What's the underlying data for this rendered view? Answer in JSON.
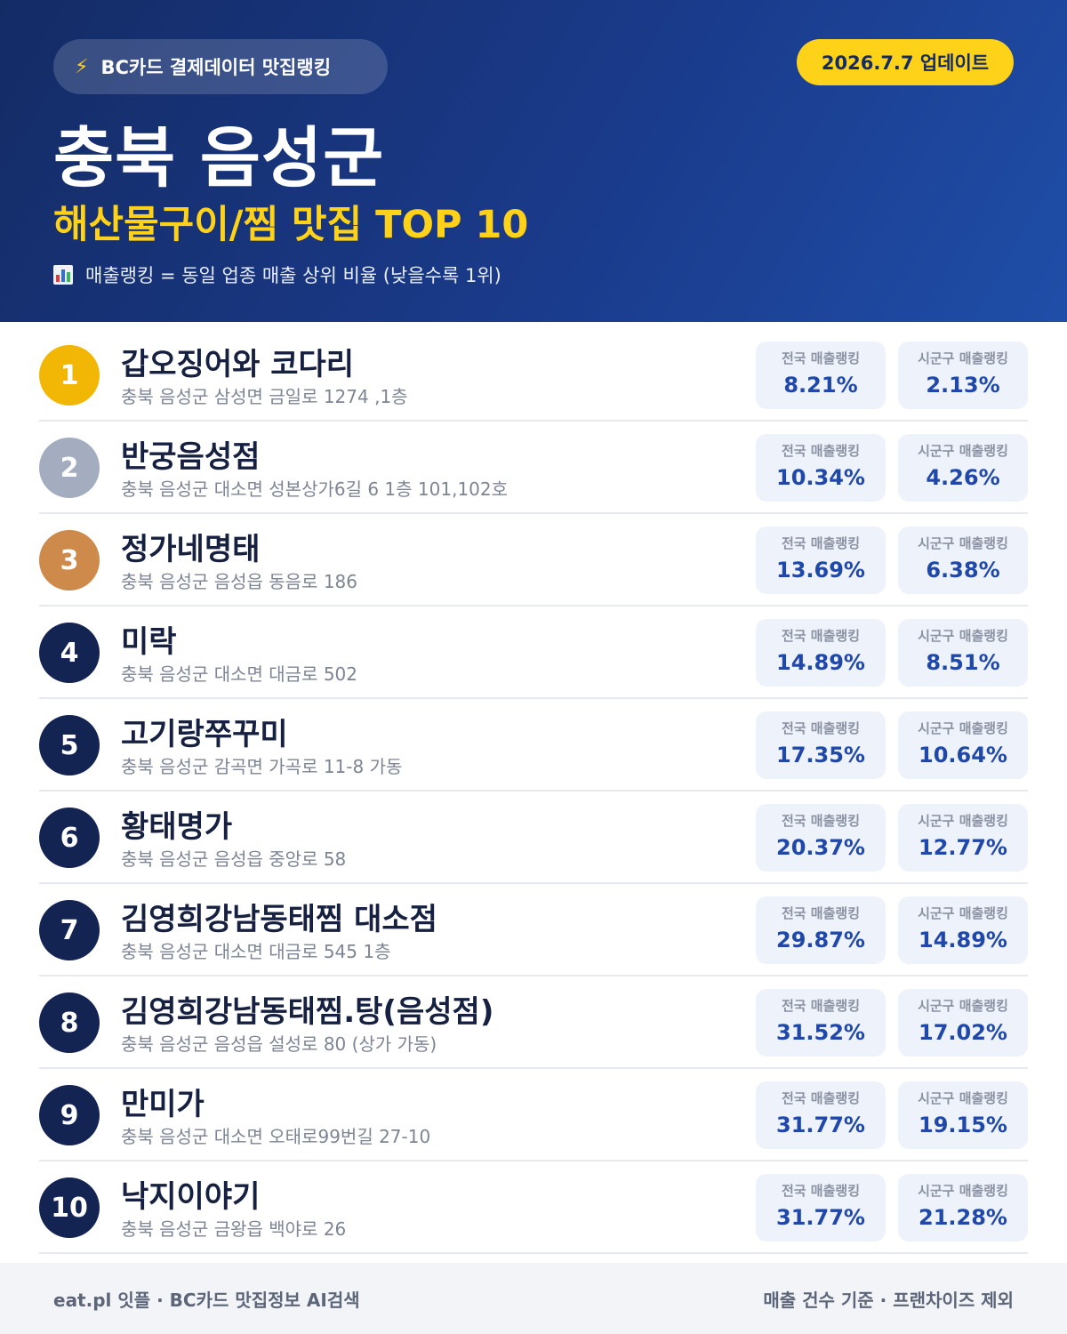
{
  "header": {
    "source_badge": "BC카드 결제데이터 맛집랭킹",
    "source_icon": "lightning-icon",
    "update_badge": "2026.7.7 업데이트",
    "region": "충북 음성군",
    "category_title": "해산물구이/찜 맛집 TOP 10",
    "legend_icon": "bar-chart-icon",
    "legend_text": "매출랭킹 = 동일 업종 매출 상위 비율 (낮을수록 1위)"
  },
  "colors": {
    "gold": "#f2b705",
    "silver": "#a3adbf",
    "bronze": "#cd8a4a",
    "navy": "#132352",
    "accent_yellow": "#ffd21a",
    "value_blue": "#1f48a8"
  },
  "labels": {
    "national": "전국 매출랭킹",
    "local": "시군구 매출랭킹"
  },
  "restaurants": [
    {
      "rank": "1",
      "name": "갑오징어와 코다리",
      "address": "충북 음성군 삼성면 금일로 1274 ,1층",
      "national": "8.21%",
      "local": "2.13%"
    },
    {
      "rank": "2",
      "name": "반궁음성점",
      "address": "충북 음성군 대소면 성본상가6길 6 1층 101,102호",
      "national": "10.34%",
      "local": "4.26%"
    },
    {
      "rank": "3",
      "name": "정가네명태",
      "address": "충북 음성군 음성읍 동음로 186",
      "national": "13.69%",
      "local": "6.38%"
    },
    {
      "rank": "4",
      "name": "미락",
      "address": "충북 음성군 대소면 대금로 502",
      "national": "14.89%",
      "local": "8.51%"
    },
    {
      "rank": "5",
      "name": "고기랑쭈꾸미",
      "address": "충북 음성군 감곡면 가곡로 11-8 가동",
      "national": "17.35%",
      "local": "10.64%"
    },
    {
      "rank": "6",
      "name": "황태명가",
      "address": "충북 음성군 음성읍 중앙로 58",
      "national": "20.37%",
      "local": "12.77%"
    },
    {
      "rank": "7",
      "name": "김영희강남동태찜 대소점",
      "address": "충북 음성군 대소면 대금로 545 1층",
      "national": "29.87%",
      "local": "14.89%"
    },
    {
      "rank": "8",
      "name": "김영희강남동태찜.탕(음성점)",
      "address": "충북 음성군 음성읍 설성로 80 (상가 가동)",
      "national": "31.52%",
      "local": "17.02%"
    },
    {
      "rank": "9",
      "name": "만미가",
      "address": "충북 음성군 대소면 오태로99번길 27-10",
      "national": "31.77%",
      "local": "19.15%"
    },
    {
      "rank": "10",
      "name": "낙지이야기",
      "address": "충북 음성군 금왕읍 백야로 26",
      "national": "31.77%",
      "local": "21.28%"
    }
  ],
  "footer": {
    "left": "eat.pl 잇플 · BC카드 맛집정보 AI검색",
    "right": "매출 건수 기준 · 프랜차이즈 제외"
  }
}
